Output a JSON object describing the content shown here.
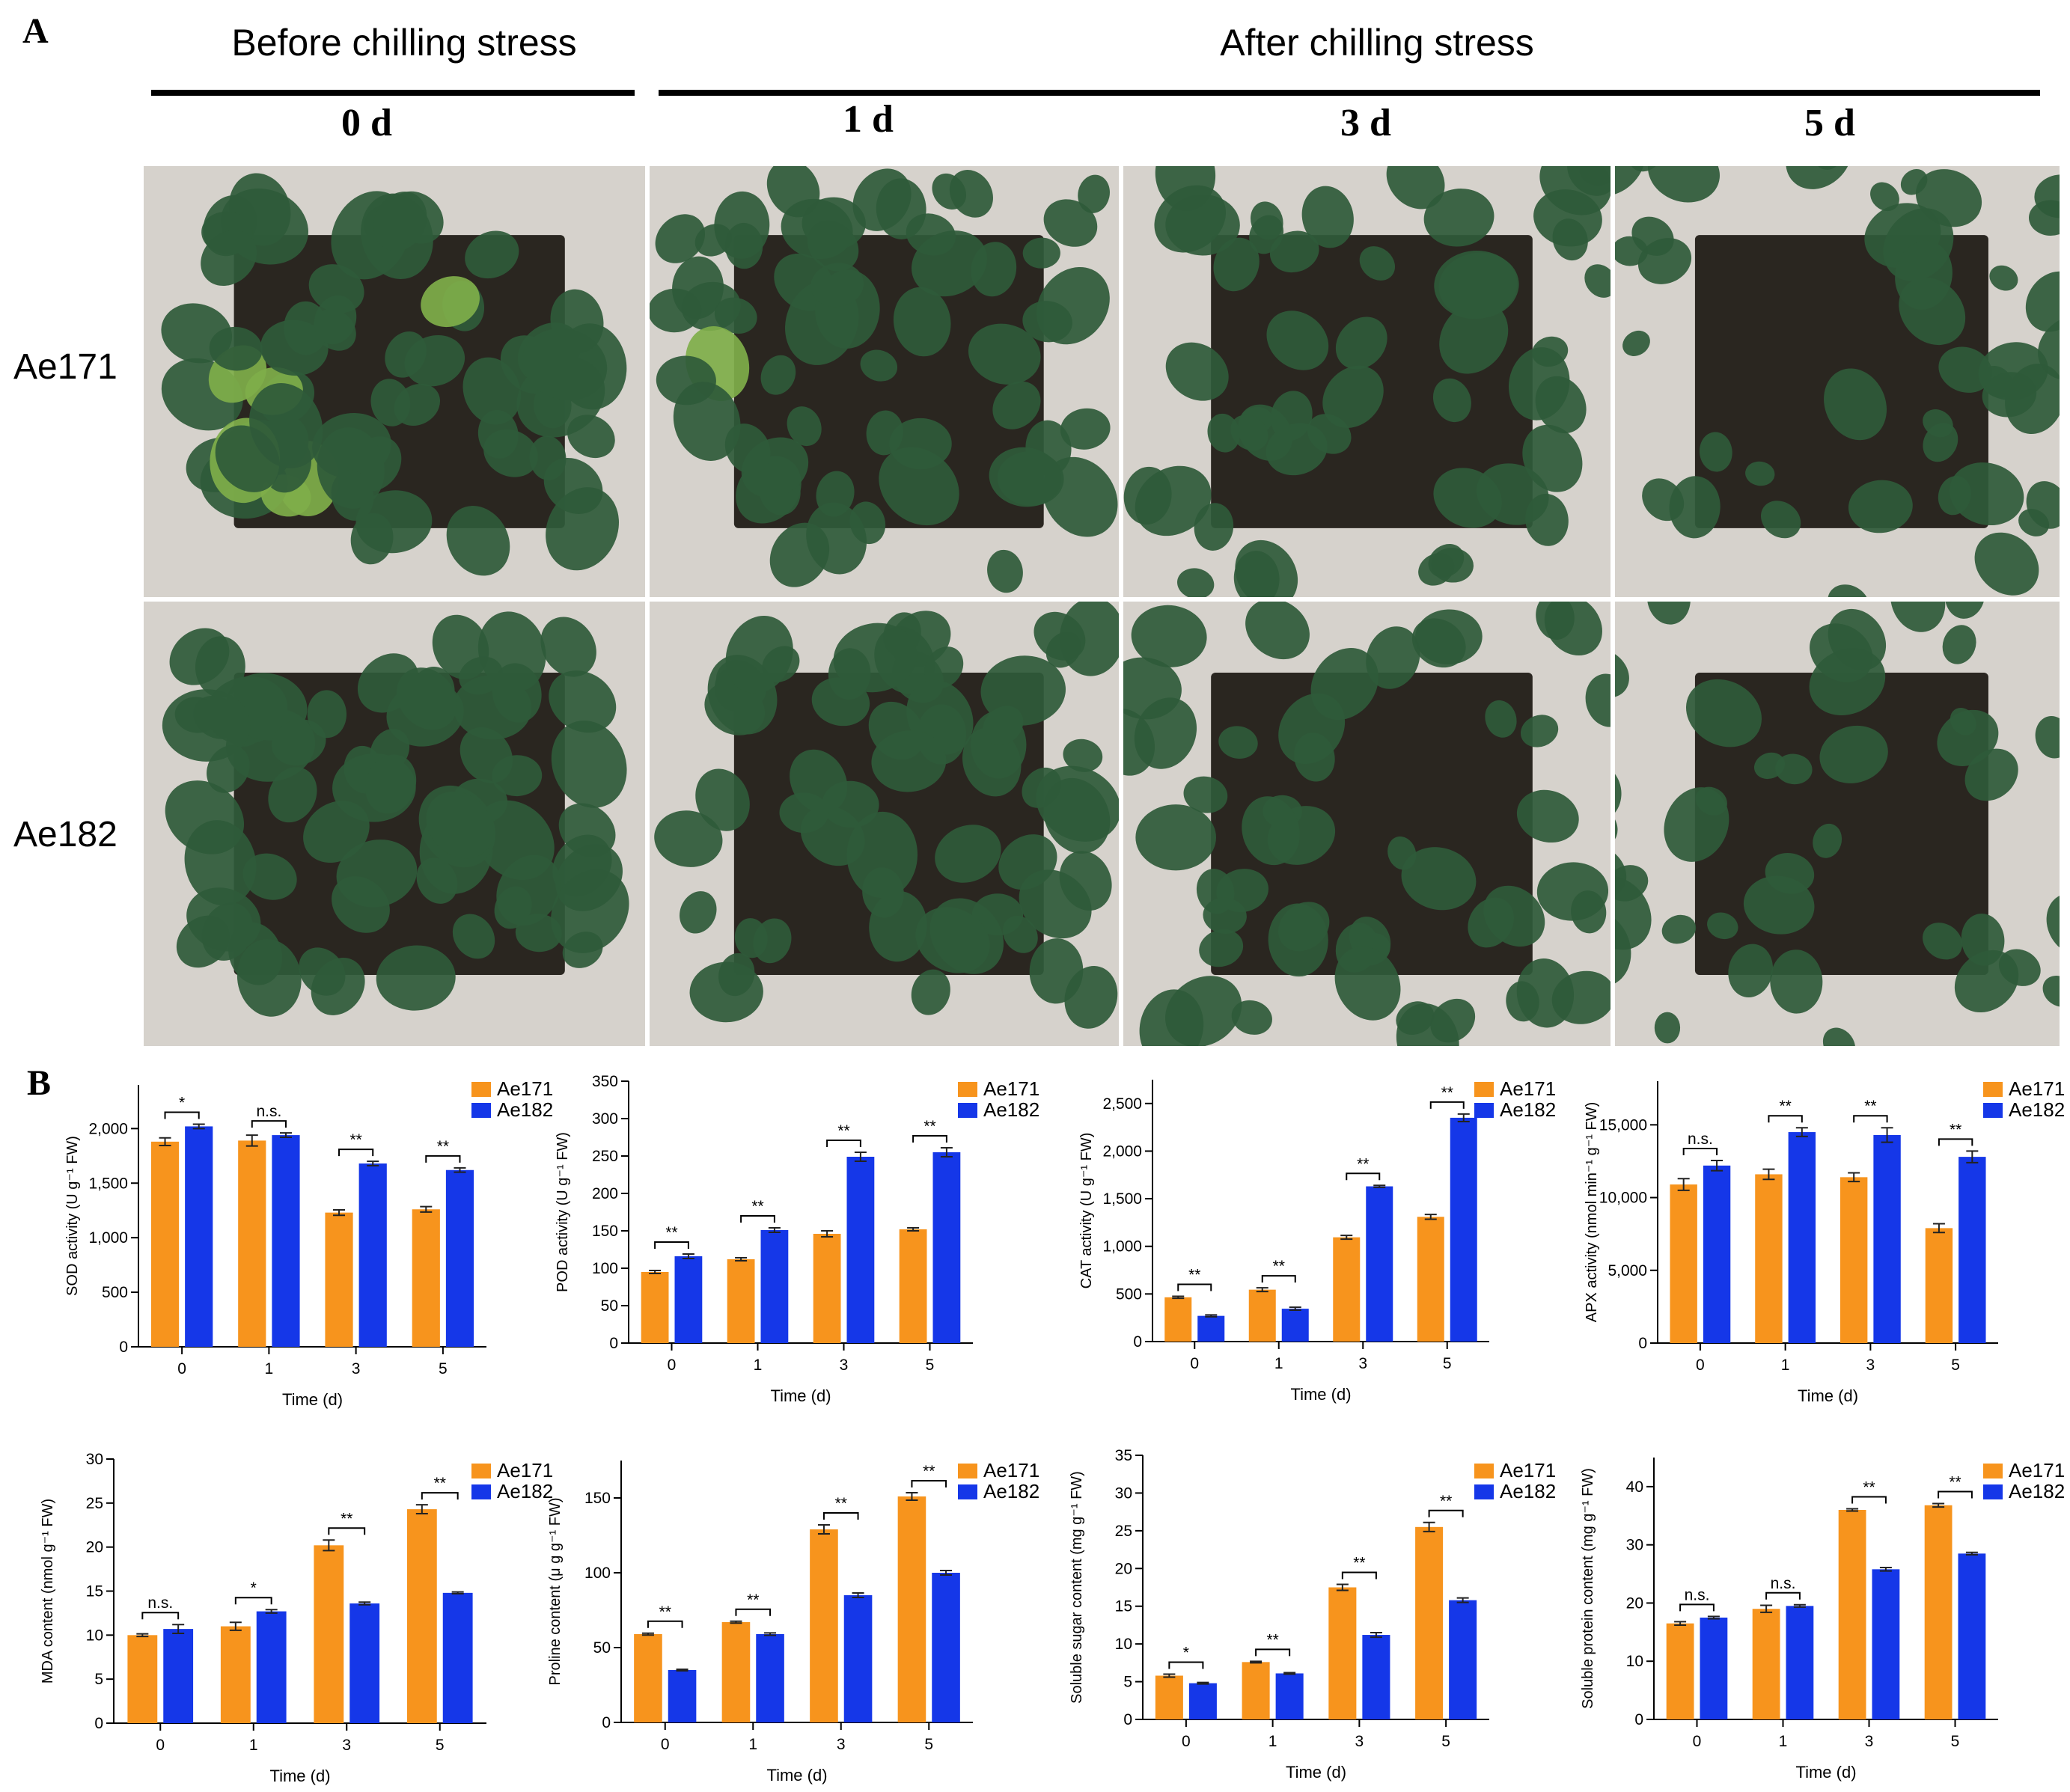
{
  "panel_a": {
    "letter": "A",
    "before_label": "Before chilling stress",
    "after_label": "After chilling stress",
    "days": [
      "0 d",
      "1 d",
      "3 d",
      "5 d"
    ],
    "rows": [
      "Ae171",
      "Ae182"
    ],
    "colors": {
      "soil": "#d6d2cc",
      "leaf": "#2f5a3a",
      "leaf_light": "#7fae4a",
      "tray": "#2a2620"
    }
  },
  "panel_b": {
    "letter": "B"
  },
  "colors": {
    "Ae171": "#f7941d",
    "Ae182": "#1537e8"
  },
  "chart_data": [
    {
      "type": "bar",
      "categories": [
        "0",
        "1",
        "3",
        "5"
      ],
      "xlabel": "Time (d)",
      "ylabel": "SOD activity (U g⁻¹ FW)",
      "ylim": [
        0,
        2400
      ],
      "yticks": [
        "0",
        "500",
        "1,000",
        "1,500",
        "2,000"
      ],
      "ytick_values": [
        0,
        500,
        1000,
        1500,
        2000
      ],
      "series": [
        {
          "name": "Ae171",
          "values": [
            1880,
            1890,
            1230,
            1260
          ],
          "errors": [
            35,
            50,
            25,
            25
          ]
        },
        {
          "name": "Ae182",
          "values": [
            2020,
            1940,
            1680,
            1620
          ],
          "errors": [
            20,
            20,
            20,
            20
          ]
        }
      ],
      "significance": [
        "*",
        "n.s.",
        "**",
        "**"
      ]
    },
    {
      "type": "bar",
      "categories": [
        "0",
        "1",
        "3",
        "5"
      ],
      "xlabel": "Time (d)",
      "ylabel": "POD activity (U g⁻¹ FW)",
      "ylim": [
        0,
        350
      ],
      "yticks": [
        "0",
        "50",
        "100",
        "150",
        "200",
        "250",
        "300",
        "350"
      ],
      "ytick_values": [
        0,
        50,
        100,
        150,
        200,
        250,
        300,
        350
      ],
      "series": [
        {
          "name": "Ae171",
          "values": [
            95,
            112,
            146,
            152
          ],
          "errors": [
            2,
            2,
            4,
            2
          ]
        },
        {
          "name": "Ae182",
          "values": [
            116,
            151,
            249,
            255
          ],
          "errors": [
            3,
            3,
            6,
            6
          ]
        }
      ],
      "significance": [
        "**",
        "**",
        "**",
        "**"
      ]
    },
    {
      "type": "bar",
      "categories": [
        "0",
        "1",
        "3",
        "5"
      ],
      "xlabel": "Time (d)",
      "ylabel": "CAT activity (U g⁻¹ FW)",
      "ylim": [
        0,
        2750
      ],
      "yticks": [
        "0",
        "500",
        "1,000",
        "1,500",
        "2,000",
        "2,500"
      ],
      "ytick_values": [
        0,
        500,
        1000,
        1500,
        2000,
        2500
      ],
      "series": [
        {
          "name": "Ae171",
          "values": [
            465,
            545,
            1095,
            1310
          ],
          "errors": [
            10,
            20,
            20,
            25
          ]
        },
        {
          "name": "Ae182",
          "values": [
            270,
            345,
            1630,
            2350
          ],
          "errors": [
            10,
            15,
            10,
            40
          ]
        }
      ],
      "significance": [
        "**",
        "**",
        "**",
        "**"
      ]
    },
    {
      "type": "bar",
      "categories": [
        "0",
        "1",
        "3",
        "5"
      ],
      "xlabel": "Time (d)",
      "ylabel": "APX activity (nmol min⁻¹ g⁻¹ FW)",
      "ylim": [
        0,
        18000
      ],
      "yticks": [
        "0",
        "5,000",
        "10,000",
        "15,000"
      ],
      "ytick_values": [
        0,
        5000,
        10000,
        15000
      ],
      "series": [
        {
          "name": "Ae171",
          "values": [
            10900,
            11600,
            11400,
            7900
          ],
          "errors": [
            400,
            350,
            300,
            300
          ]
        },
        {
          "name": "Ae182",
          "values": [
            12200,
            14500,
            14300,
            12800
          ],
          "errors": [
            350,
            300,
            500,
            400
          ]
        }
      ],
      "significance": [
        "n.s.",
        "**",
        "**",
        "**"
      ]
    },
    {
      "type": "bar",
      "categories": [
        "0",
        "1",
        "3",
        "5"
      ],
      "xlabel": "Time (d)",
      "ylabel": "MDA content (nmol g⁻¹ FW)",
      "ylim": [
        0,
        30
      ],
      "yticks": [
        "0",
        "5",
        "10",
        "15",
        "20",
        "25",
        "30"
      ],
      "ytick_values": [
        0,
        5,
        10,
        15,
        20,
        25,
        30
      ],
      "series": [
        {
          "name": "Ae171",
          "values": [
            10.0,
            11.0,
            20.2,
            24.3
          ],
          "errors": [
            0.15,
            0.45,
            0.6,
            0.5
          ]
        },
        {
          "name": "Ae182",
          "values": [
            10.7,
            12.7,
            13.6,
            14.8
          ],
          "errors": [
            0.5,
            0.2,
            0.15,
            0.1
          ]
        }
      ],
      "significance": [
        "n.s.",
        "*",
        "**",
        "**"
      ]
    },
    {
      "type": "bar",
      "categories": [
        "0",
        "1",
        "3",
        "5"
      ],
      "xlabel": "Time (d)",
      "ylabel": "Proline content (μ g g⁻¹ FW)",
      "ylim": [
        0,
        175
      ],
      "yticks": [
        "0",
        "50",
        "100",
        "150"
      ],
      "ytick_values": [
        0,
        50,
        100,
        150
      ],
      "series": [
        {
          "name": "Ae171",
          "values": [
            59,
            67,
            129,
            151
          ],
          "errors": [
            0.6,
            0.6,
            3,
            2.5
          ]
        },
        {
          "name": "Ae182",
          "values": [
            35,
            59,
            85,
            100
          ],
          "errors": [
            0.5,
            0.8,
            1.5,
            1.5
          ]
        }
      ],
      "significance": [
        "**",
        "**",
        "**",
        "**"
      ]
    },
    {
      "type": "bar",
      "categories": [
        "0",
        "1",
        "3",
        "5"
      ],
      "xlabel": "Time (d)",
      "ylabel": "Soluble sugar content (mg g⁻¹ FW)",
      "ylim": [
        0,
        35
      ],
      "yticks": [
        "0",
        "5",
        "10",
        "15",
        "20",
        "25",
        "30",
        "35"
      ],
      "ytick_values": [
        0,
        5,
        10,
        15,
        20,
        25,
        30,
        35
      ],
      "series": [
        {
          "name": "Ae171",
          "values": [
            5.8,
            7.6,
            17.5,
            25.5
          ],
          "errors": [
            0.2,
            0.1,
            0.4,
            0.6
          ]
        },
        {
          "name": "Ae182",
          "values": [
            4.8,
            6.1,
            11.2,
            15.8
          ],
          "errors": [
            0.1,
            0.1,
            0.3,
            0.3
          ]
        }
      ],
      "significance": [
        "*",
        "**",
        "**",
        "**"
      ]
    },
    {
      "type": "bar",
      "categories": [
        "0",
        "1",
        "3",
        "5"
      ],
      "xlabel": "Time (d)",
      "ylabel": "Soluble protein content (mg g⁻¹ FW)",
      "ylim": [
        0,
        45
      ],
      "yticks": [
        "0",
        "10",
        "20",
        "30",
        "40"
      ],
      "ytick_values": [
        0,
        10,
        20,
        30,
        40
      ],
      "series": [
        {
          "name": "Ae171",
          "values": [
            16.5,
            19.0,
            36.0,
            36.8
          ],
          "errors": [
            0.3,
            0.6,
            0.2,
            0.3
          ]
        },
        {
          "name": "Ae182",
          "values": [
            17.5,
            19.5,
            25.8,
            28.5
          ],
          "errors": [
            0.2,
            0.2,
            0.3,
            0.2
          ]
        }
      ],
      "significance": [
        "n.s.",
        "n.s.",
        "**",
        "**"
      ]
    }
  ]
}
